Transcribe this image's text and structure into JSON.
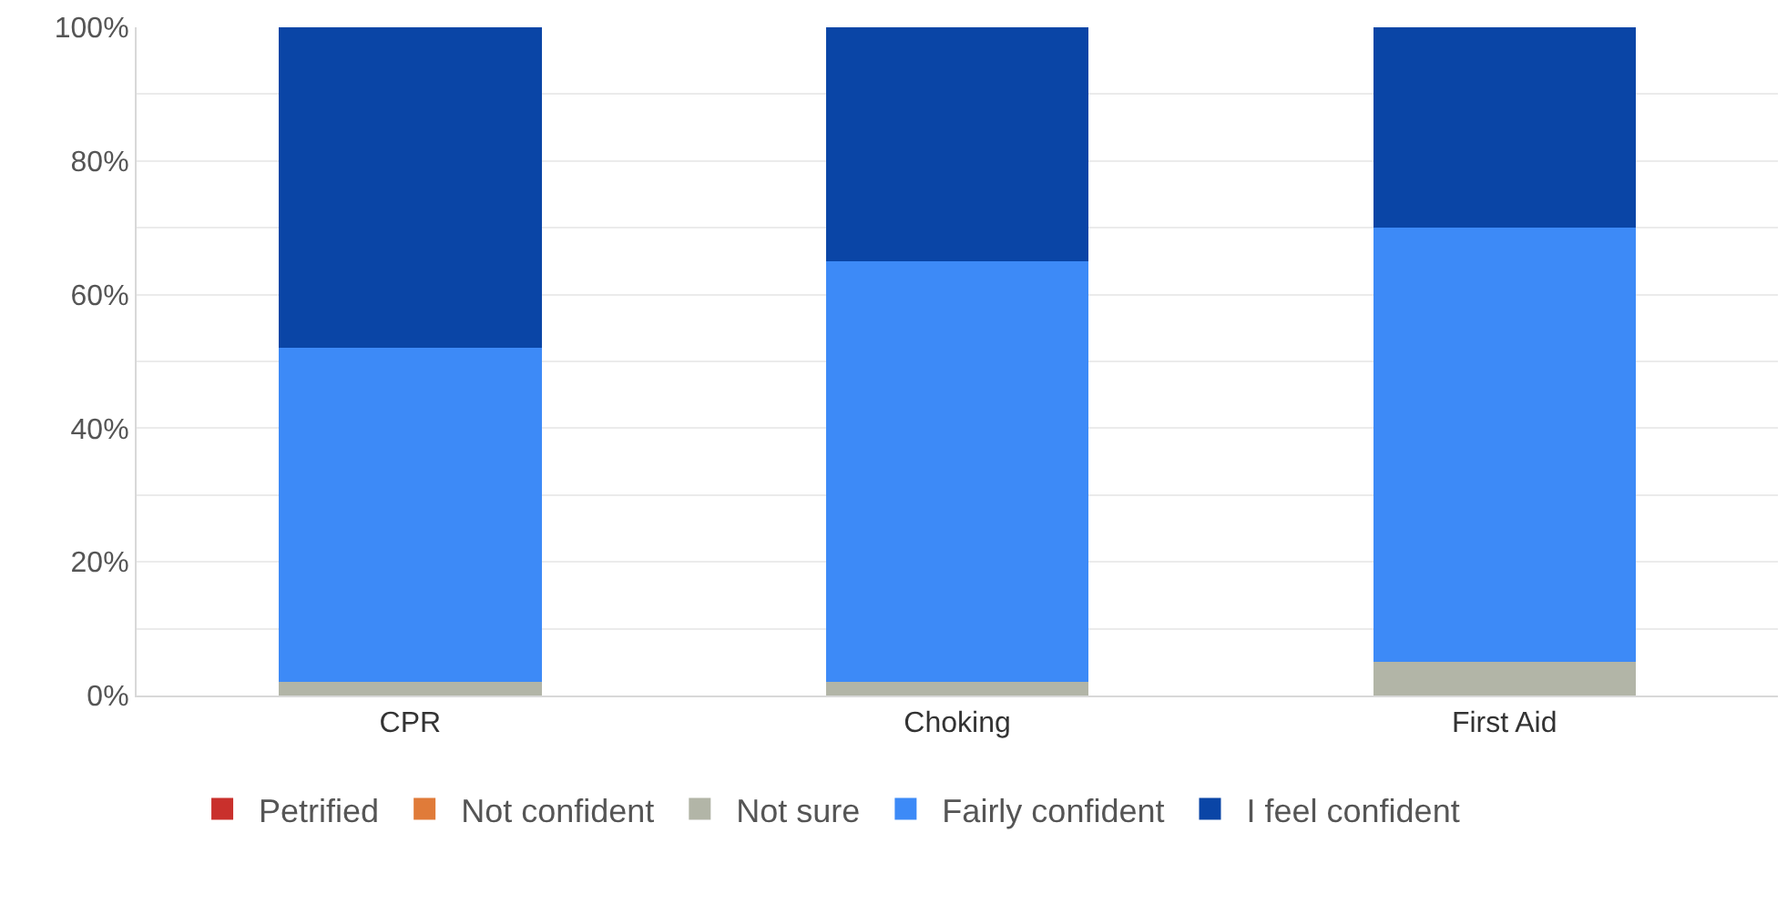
{
  "chart_data": {
    "type": "bar",
    "stacked": true,
    "categories": [
      "CPR",
      "Choking",
      "First Aid"
    ],
    "series": [
      {
        "name": "Petrified",
        "color": "#c9302c",
        "values": [
          0,
          0,
          0
        ]
      },
      {
        "name": "Not confident",
        "color": "#e07b39",
        "values": [
          0,
          0,
          0
        ]
      },
      {
        "name": "Not sure",
        "color": "#b2b5a7",
        "values": [
          2,
          2,
          5
        ]
      },
      {
        "name": "Fairly confident",
        "color": "#3d8af7",
        "values": [
          50,
          63,
          65
        ]
      },
      {
        "name": "I feel confident",
        "color": "#0a45a6",
        "values": [
          48,
          35,
          30
        ]
      }
    ],
    "ylim": [
      0,
      100
    ],
    "yticks": [
      {
        "value": 0,
        "label": "0%"
      },
      {
        "value": 10,
        "label": null
      },
      {
        "value": 20,
        "label": "20%"
      },
      {
        "value": 30,
        "label": null
      },
      {
        "value": 40,
        "label": "40%"
      },
      {
        "value": 50,
        "label": null
      },
      {
        "value": 60,
        "label": "60%"
      },
      {
        "value": 70,
        "label": null
      },
      {
        "value": 80,
        "label": "80%"
      },
      {
        "value": 90,
        "label": null
      },
      {
        "value": 100,
        "label": "100%"
      }
    ],
    "grid": "y",
    "legend": "bottom"
  }
}
